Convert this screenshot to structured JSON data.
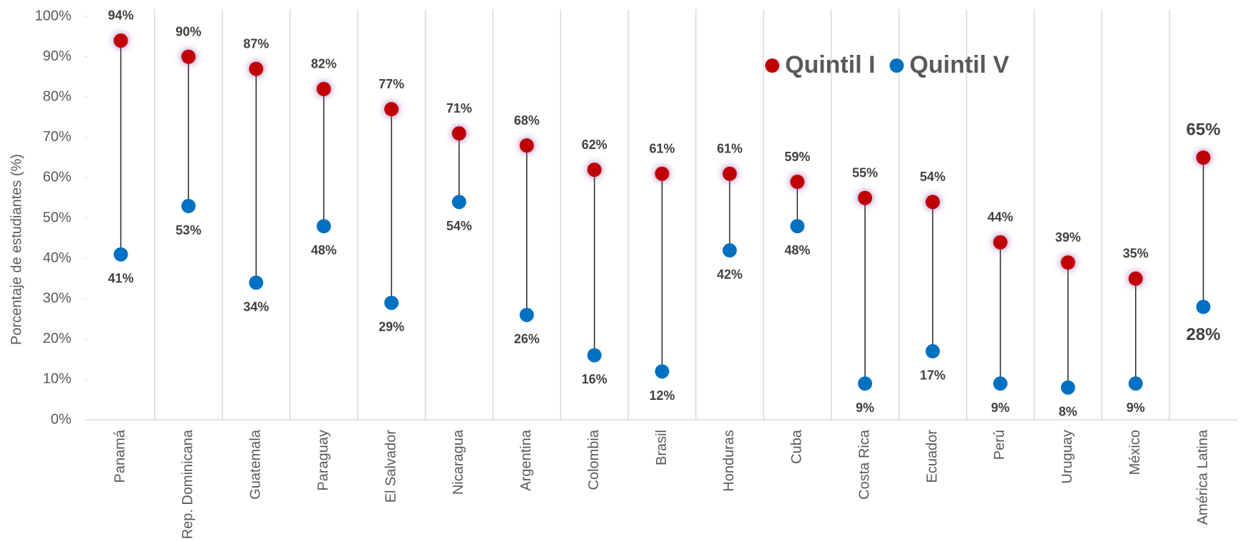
{
  "chart_data": {
    "type": "dumbbell",
    "y_axis_label": "Porcentaje de estudiantes (%)",
    "categories": [
      "Panamá",
      "Rep. Dominicana",
      "Guatemala",
      "Paraguay",
      "El Salvador",
      "Nicaragua",
      "Argentina",
      "Colombia",
      "Brasil",
      "Honduras",
      "Cuba",
      "Costa Rica",
      "Ecuador",
      "Perú",
      "Uruguay",
      "México",
      "América Latina"
    ],
    "series": [
      {
        "name": "Quintil I",
        "color": "#c00000",
        "values": [
          94,
          90,
          87,
          82,
          77,
          71,
          68,
          62,
          61,
          61,
          59,
          55,
          54,
          44,
          39,
          35,
          65
        ],
        "value_labels": [
          "94%",
          "90%",
          "87%",
          "82%",
          "77%",
          "71%",
          "68%",
          "62%",
          "61%",
          "61%",
          "59%",
          "55%",
          "54%",
          "44%",
          "39%",
          "35%",
          "65%"
        ]
      },
      {
        "name": "Quintil V",
        "color": "#0070c0",
        "values": [
          41,
          53,
          34,
          48,
          29,
          54,
          26,
          16,
          12,
          42,
          48,
          9,
          17,
          9,
          8,
          9,
          28
        ],
        "value_labels": [
          "41%",
          "53%",
          "34%",
          "48%",
          "29%",
          "54%",
          "26%",
          "16%",
          "12%",
          "42%",
          "48%",
          "9%",
          "17%",
          "9%",
          "8%",
          "9%",
          "28%"
        ]
      }
    ],
    "ylim": [
      0,
      100
    ],
    "yticks": [
      {
        "value": 0,
        "label": "0%"
      },
      {
        "value": 10,
        "label": "10%"
      },
      {
        "value": 20,
        "label": "20%"
      },
      {
        "value": 30,
        "label": "30%"
      },
      {
        "value": 40,
        "label": "40%"
      },
      {
        "value": 50,
        "label": "50%"
      },
      {
        "value": 60,
        "label": "60%"
      },
      {
        "value": 70,
        "label": "70%"
      },
      {
        "value": 80,
        "label": "80%"
      },
      {
        "value": 90,
        "label": "90%"
      },
      {
        "value": 100,
        "label": "100%"
      }
    ],
    "legend": "top-right"
  }
}
